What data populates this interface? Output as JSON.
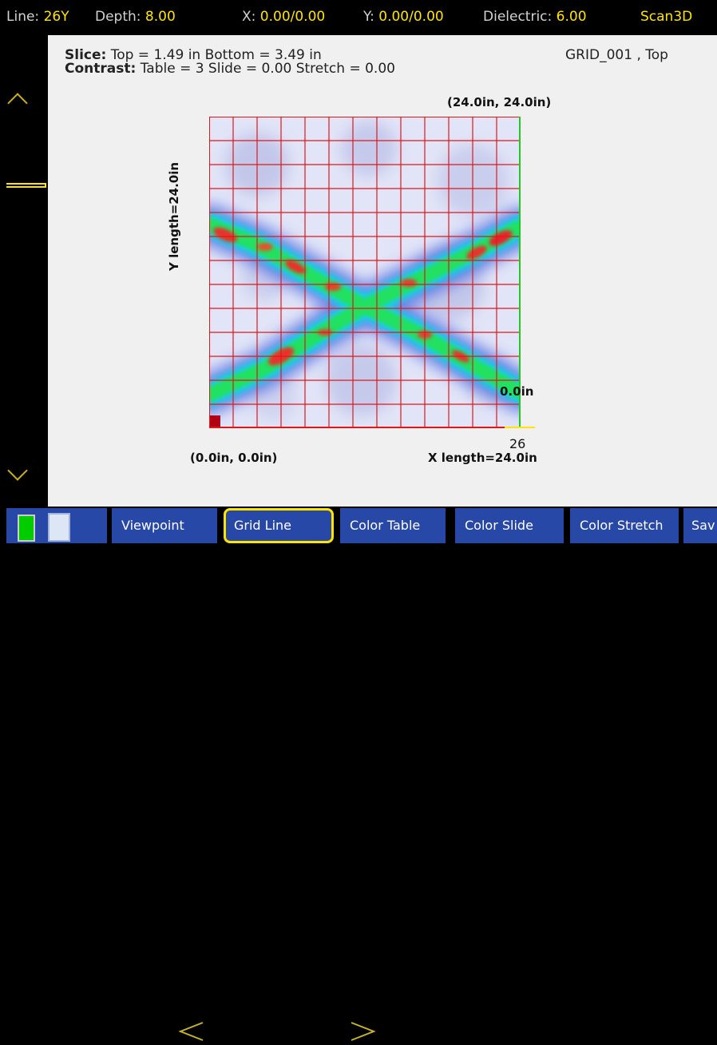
{
  "status_bar": {
    "line_label": "Line:",
    "line_value": "26Y",
    "depth_label": "Depth:",
    "depth_value": "8.00",
    "x_label": "X:",
    "x_value": "0.00/0.00",
    "y_label": "Y:",
    "y_value": "0.00/0.00",
    "dielectric_label": "Dielectric:",
    "dielectric_value": "6.00",
    "mode": "Scan3D"
  },
  "slice_info": {
    "slice_label": "Slice:",
    "slice_text": "Top = 1.49 in  Bottom = 3.49 in",
    "contrast_label": "Contrast:",
    "contrast_text": "Table = 3  Slide = 0.00  Stretch = 0.00",
    "grid_name": "GRID_001 , Top"
  },
  "plot": {
    "top_right_coord": "(24.0in, 24.0in)",
    "bottom_left_coord": "(0.0in, 0.0in)",
    "y_length": "Y length=24.0in",
    "x_length": "X length=24.0in",
    "right_axis_zero": "0.0in",
    "right_axis_marker": "26",
    "grid_divisions": 13,
    "grid_color": "#e01818"
  },
  "toolbar": {
    "buttons": [
      {
        "label": "Viewpoint"
      },
      {
        "label": "Grid Line"
      },
      {
        "label": "Color Table"
      },
      {
        "label": "Color Slide"
      },
      {
        "label": "Color Stretch"
      },
      {
        "label": "Sav"
      }
    ],
    "selected": "Grid Line"
  },
  "colors": {
    "accent": "#ffe400",
    "toolbar_button": "#2848a8",
    "background": "#f0f0f0"
  }
}
